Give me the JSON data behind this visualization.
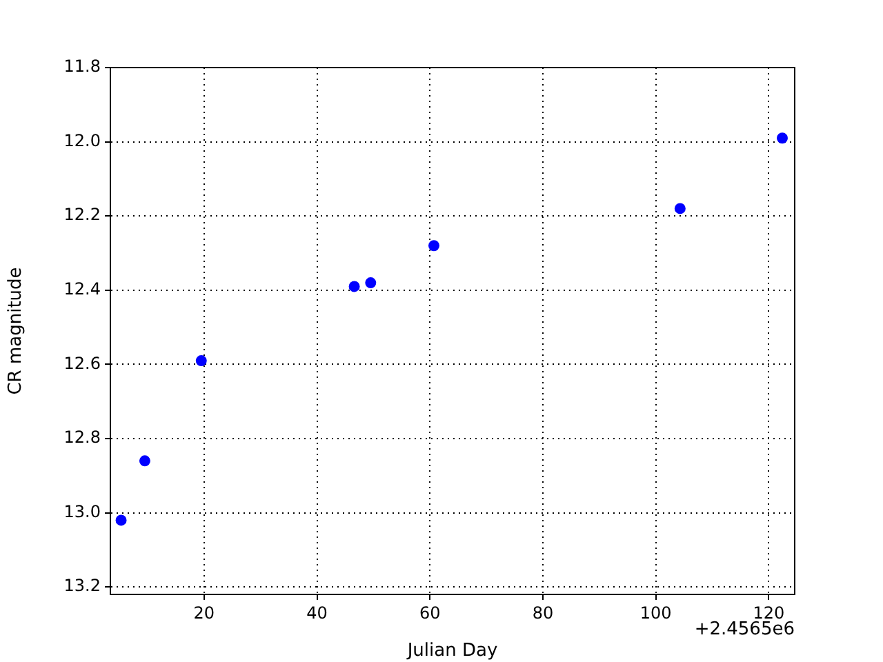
{
  "chart_data": {
    "type": "scatter",
    "xlabel": "Julian Day",
    "ylabel": "CR magnitude",
    "annotations": [
      "+2.4565e6"
    ],
    "x": [
      5.3,
      9.5,
      19.5,
      46.6,
      49.5,
      60.7,
      104.3,
      122.4
    ],
    "series": [
      {
        "color": "#0000ff",
        "values": [
          13.02,
          12.86,
          12.59,
          12.39,
          12.38,
          12.28,
          12.18,
          11.99
        ]
      }
    ],
    "xlim": [
      3.4,
      124.6
    ],
    "xticks": [
      20,
      40,
      60,
      80,
      100,
      120
    ],
    "ylim": [
      13.22,
      11.8
    ],
    "yticks": [
      11.8,
      {
        "value": 12.0,
        "label": "12.0"
      },
      12.2,
      12.4,
      12.6,
      12.8,
      {
        "value": 13.0,
        "label": "13.0"
      },
      13.2
    ],
    "grid": true,
    "marker": "circle",
    "legend": false
  }
}
